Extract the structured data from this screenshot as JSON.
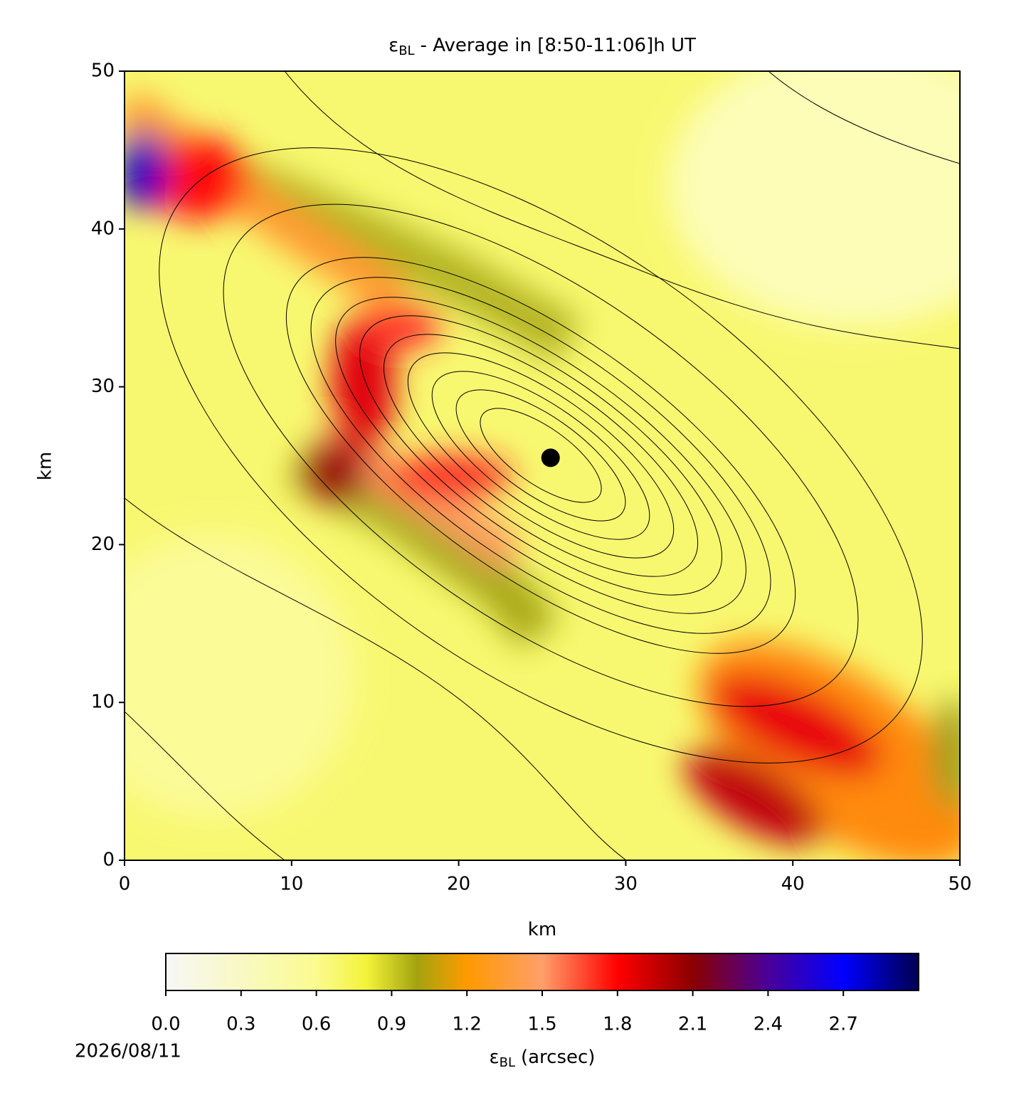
{
  "chart_data": {
    "type": "contour-map",
    "title": {
      "symbol": "ε",
      "subscript": "BL",
      "text": "- Average in [8:50-11:06]h UT"
    },
    "x_label": "km",
    "y_label": "km",
    "xlim": [
      0,
      50
    ],
    "ylim": [
      0,
      50
    ],
    "xticks": [
      0,
      10,
      20,
      30,
      40,
      50
    ],
    "yticks": [
      0,
      10,
      20,
      30,
      40,
      50
    ],
    "points": [
      {
        "x": 25.5,
        "y": 25.5,
        "color": "#000000"
      }
    ],
    "colorbar": {
      "label": {
        "symbol": "ε",
        "subscript": "BL",
        "text": "(arcsec)"
      },
      "clim": [
        0,
        3
      ],
      "ticks": [
        {
          "value": 0,
          "label": "0.0"
        },
        0.3,
        0.6,
        0.9,
        1.2,
        1.5,
        1.8,
        2.1,
        2.4,
        2.7
      ],
      "colormap": [
        {
          "value": 0,
          "color": "#f7f7f7"
        },
        {
          "value": 0.6,
          "color": "#fbfb90"
        },
        {
          "value": 0.8,
          "color": "#f3f33a"
        },
        {
          "value": 1.0,
          "color": "#a3a30f"
        },
        {
          "value": 1.2,
          "color": "#ff9a00"
        },
        {
          "value": 1.5,
          "color": "#ff9f6a"
        },
        {
          "value": 1.8,
          "color": "#ff0000"
        },
        {
          "value": 2.1,
          "color": "#8b0000"
        },
        {
          "value": 2.4,
          "color": "#4a0099"
        },
        {
          "value": 2.7,
          "color": "#0000ff"
        },
        {
          "value": 3.0,
          "color": "#000050"
        }
      ]
    },
    "date": "2026/08/11"
  }
}
